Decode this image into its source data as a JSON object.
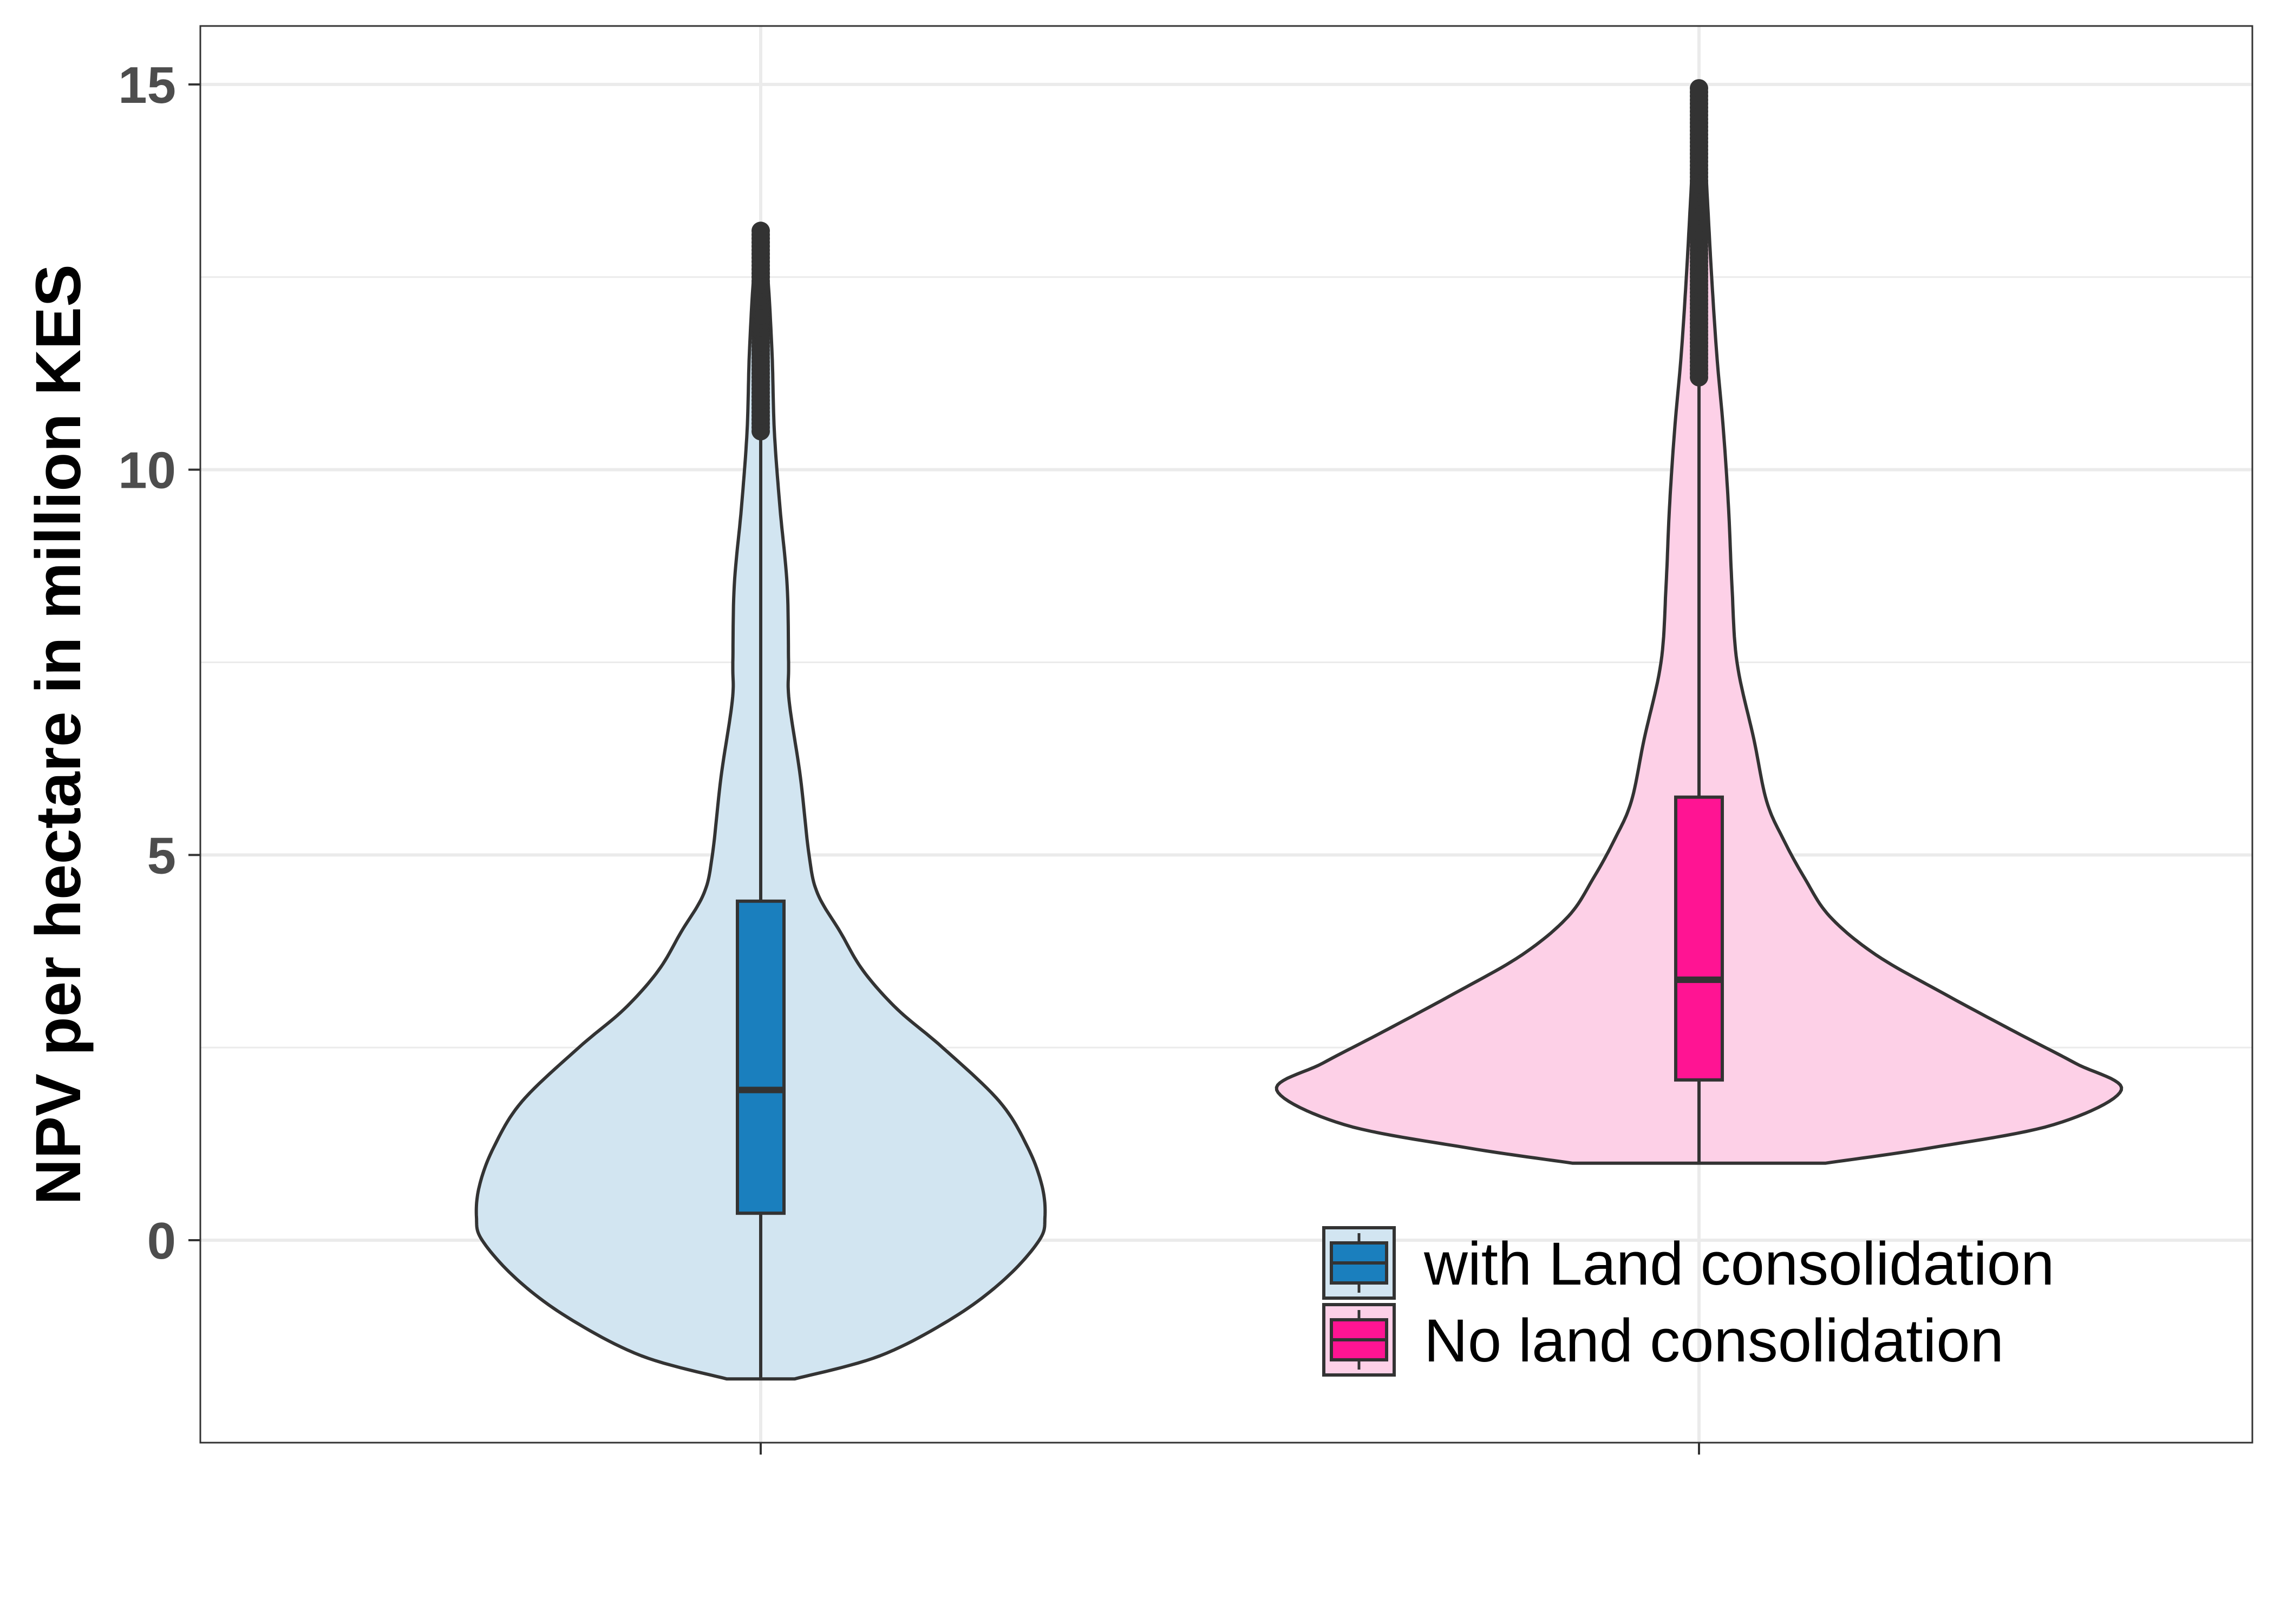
{
  "chart_data": {
    "type": "violin",
    "title": "",
    "xlabel": "",
    "ylabel": "NPV per hectare in million KES",
    "ylim": [
      -2.5,
      16
    ],
    "y_ticks": [
      0,
      5,
      10,
      15
    ],
    "y_tick_labels": [
      "0",
      "5",
      "10",
      "15"
    ],
    "y_minor_gridlines": [
      2.5,
      7.5,
      12.5
    ],
    "grid": true,
    "x_tick_labels": [],
    "legend": {
      "position": "bottom-right-inside"
    },
    "series": [
      {
        "name": "with Land consolidation",
        "violin_color": "#d2e5f1",
        "box_color": "#1a7fbe",
        "min": -1.8,
        "q1": 0.35,
        "median": 1.95,
        "q3": 4.4,
        "whisker_high": 10.5,
        "outliers_from": 10.5,
        "max": 13.1,
        "density_profile": [
          [
            -1.8,
            0.12
          ],
          [
            -1.5,
            0.42
          ],
          [
            -1.0,
            0.68
          ],
          [
            -0.5,
            0.86
          ],
          [
            0.0,
            0.98
          ],
          [
            0.3,
            1.0
          ],
          [
            0.7,
            0.99
          ],
          [
            1.2,
            0.94
          ],
          [
            1.8,
            0.84
          ],
          [
            2.5,
            0.64
          ],
          [
            3.0,
            0.48
          ],
          [
            3.5,
            0.36
          ],
          [
            4.0,
            0.28
          ],
          [
            4.5,
            0.2
          ],
          [
            5.0,
            0.17
          ],
          [
            6.0,
            0.14
          ],
          [
            7.0,
            0.1
          ],
          [
            7.5,
            0.098
          ],
          [
            8.5,
            0.093
          ],
          [
            9.5,
            0.068
          ],
          [
            10.5,
            0.048
          ],
          [
            11.5,
            0.04
          ],
          [
            12.5,
            0.025
          ],
          [
            13.0,
            0.008
          ]
        ]
      },
      {
        "name": "No land consolidation",
        "violin_color": "#fdd0e7",
        "box_color": "#ff1493",
        "min": 1.0,
        "q1": 2.08,
        "median": 3.38,
        "q3": 5.75,
        "whisker_high": 11.2,
        "outliers_from": 11.2,
        "max": 14.95,
        "density_profile": [
          [
            1.0,
            0.3
          ],
          [
            1.2,
            0.55
          ],
          [
            1.5,
            0.84
          ],
          [
            1.95,
            1.0
          ],
          [
            2.3,
            0.89
          ],
          [
            2.7,
            0.75
          ],
          [
            3.2,
            0.58
          ],
          [
            3.7,
            0.42
          ],
          [
            4.2,
            0.31
          ],
          [
            4.7,
            0.25
          ],
          [
            5.2,
            0.2
          ],
          [
            5.7,
            0.16
          ],
          [
            6.5,
            0.13
          ],
          [
            7.5,
            0.09
          ],
          [
            8.5,
            0.078
          ],
          [
            9.5,
            0.07
          ],
          [
            10.5,
            0.058
          ],
          [
            11.5,
            0.042
          ],
          [
            12.5,
            0.03
          ],
          [
            13.5,
            0.02
          ],
          [
            14.5,
            0.01
          ],
          [
            14.95,
            0.004
          ]
        ]
      }
    ]
  }
}
